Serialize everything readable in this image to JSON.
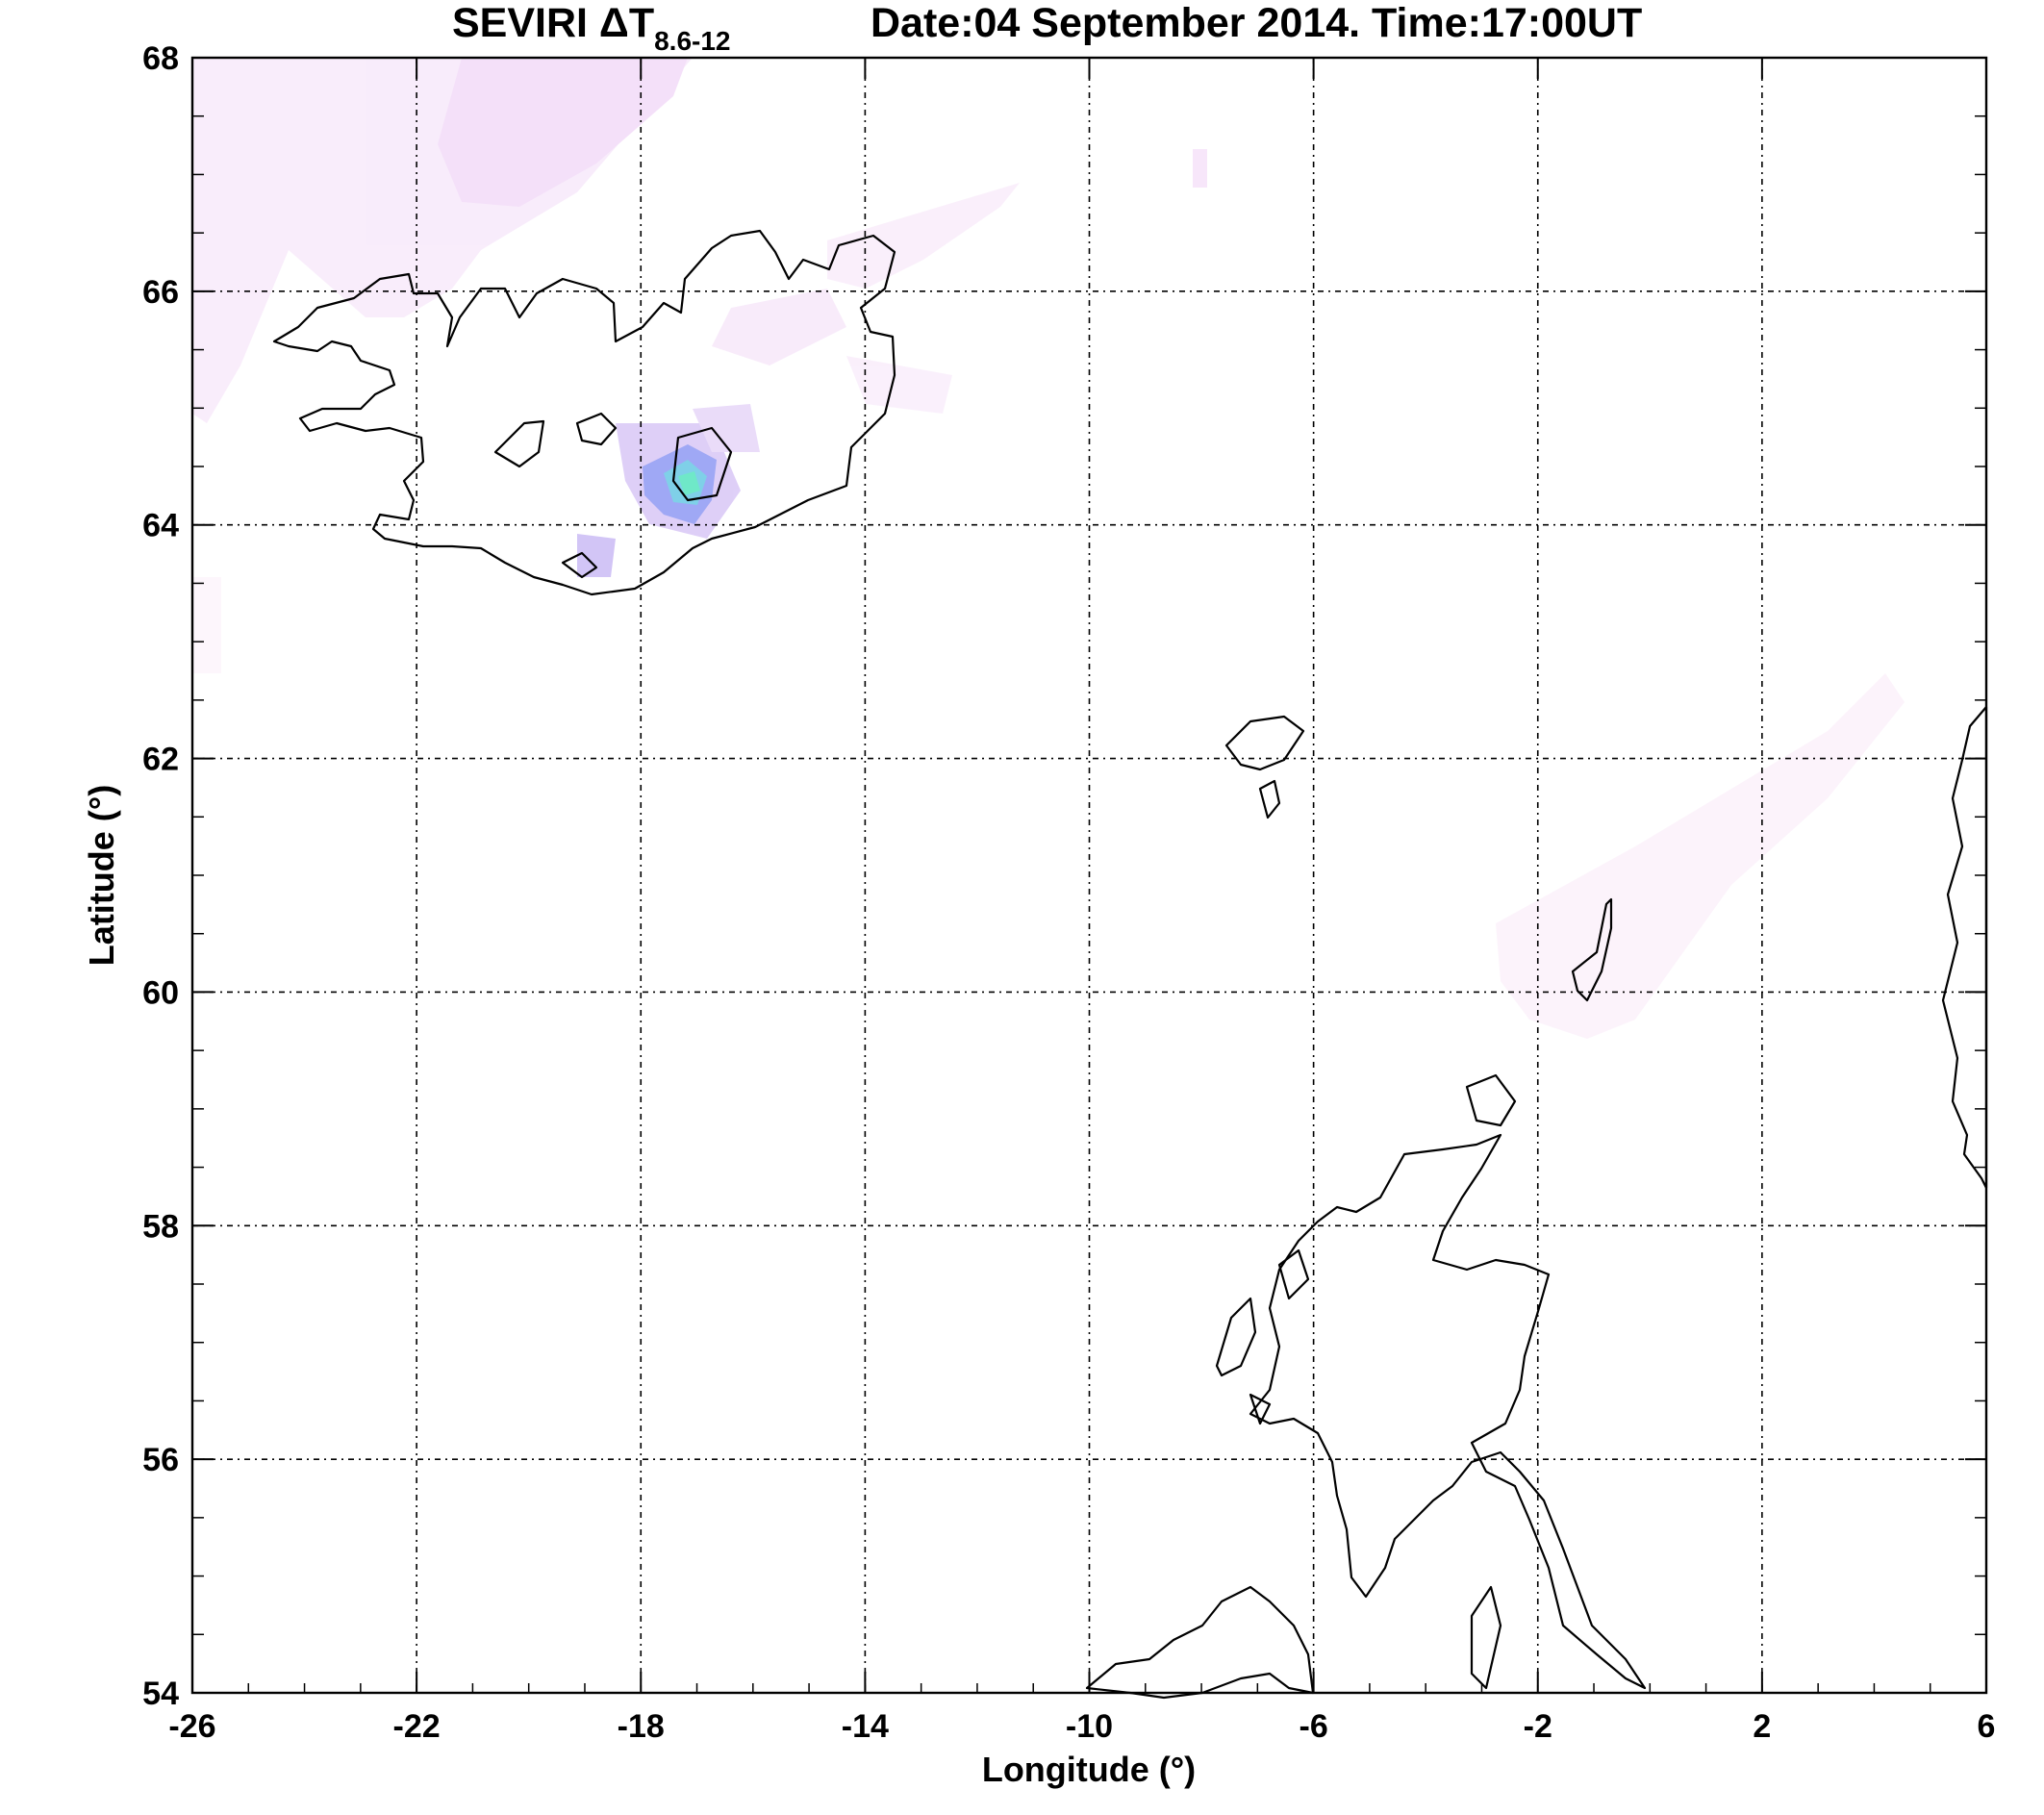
{
  "title": {
    "prefix": "SEVIRI ΔT",
    "subscript": "8.6-12",
    "date_time": "Date:04 September 2014.  Time:17:00UT"
  },
  "axes": {
    "xlabel": "Longitude (°)",
    "ylabel": "Latitude (°)",
    "x_range": [
      -26,
      6
    ],
    "y_range": [
      54,
      68
    ],
    "x_ticks": [
      "-26",
      "-22",
      "-18",
      "-14",
      "-10",
      "-6",
      "-2",
      "2",
      "6"
    ],
    "y_ticks": [
      "54",
      "56",
      "58",
      "60",
      "62",
      "64",
      "66",
      "68"
    ],
    "grid": true
  },
  "map": {
    "region": "North Atlantic: Iceland, Faroe Islands, Shetland, Scotland, Norway",
    "colors": {
      "faint_signal": "#f2d6f7",
      "light_signal": "#e3b8f2",
      "medium_signal": "#9fa8f5",
      "strong_signal": "#6fe8c8",
      "coastline": "#000000"
    }
  }
}
